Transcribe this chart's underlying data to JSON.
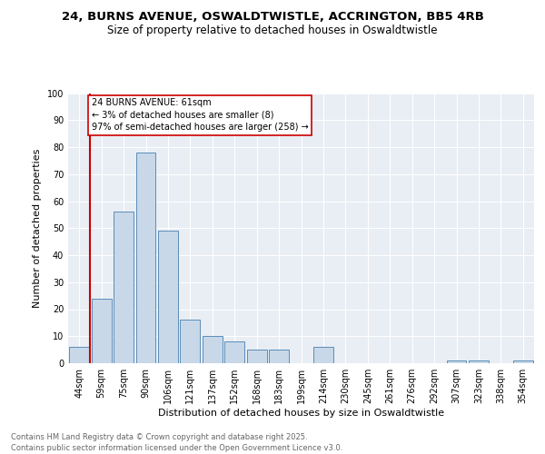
{
  "title1": "24, BURNS AVENUE, OSWALDTWISTLE, ACCRINGTON, BB5 4RB",
  "title2": "Size of property relative to detached houses in Oswaldtwistle",
  "xlabel": "Distribution of detached houses by size in Oswaldtwistle",
  "ylabel": "Number of detached properties",
  "categories": [
    "44sqm",
    "59sqm",
    "75sqm",
    "90sqm",
    "106sqm",
    "121sqm",
    "137sqm",
    "152sqm",
    "168sqm",
    "183sqm",
    "199sqm",
    "214sqm",
    "230sqm",
    "245sqm",
    "261sqm",
    "276sqm",
    "292sqm",
    "307sqm",
    "323sqm",
    "338sqm",
    "354sqm"
  ],
  "values": [
    6,
    24,
    56,
    78,
    49,
    16,
    10,
    8,
    5,
    5,
    0,
    6,
    0,
    0,
    0,
    0,
    0,
    1,
    1,
    0,
    1
  ],
  "bar_color": "#c8d8e8",
  "bar_edge_color": "#5b8db8",
  "vline_x_index": 1,
  "vline_color": "#cc0000",
  "annotation_text": "24 BURNS AVENUE: 61sqm\n← 3% of detached houses are smaller (8)\n97% of semi-detached houses are larger (258) →",
  "annotation_box_color": "#ffffff",
  "annotation_box_edge": "#cc0000",
  "ylim": [
    0,
    100
  ],
  "yticks": [
    0,
    10,
    20,
    30,
    40,
    50,
    60,
    70,
    80,
    90,
    100
  ],
  "bg_color": "#e8eef4",
  "footer": "Contains HM Land Registry data © Crown copyright and database right 2025.\nContains public sector information licensed under the Open Government Licence v3.0.",
  "title_fontsize": 9.5,
  "subtitle_fontsize": 8.5,
  "axis_label_fontsize": 8,
  "tick_fontsize": 7,
  "annotation_fontsize": 7,
  "footer_fontsize": 6
}
